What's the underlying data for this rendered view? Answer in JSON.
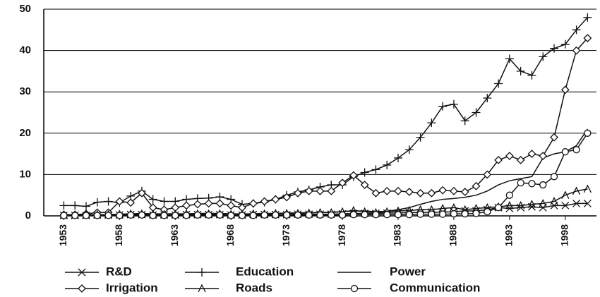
{
  "chart_data": {
    "type": "line",
    "x": [
      1953,
      1954,
      1955,
      1956,
      1957,
      1958,
      1959,
      1960,
      1961,
      1962,
      1963,
      1964,
      1965,
      1966,
      1967,
      1968,
      1969,
      1970,
      1971,
      1972,
      1973,
      1974,
      1975,
      1976,
      1977,
      1978,
      1979,
      1980,
      1981,
      1982,
      1983,
      1984,
      1985,
      1986,
      1987,
      1988,
      1989,
      1990,
      1991,
      1992,
      1993,
      1994,
      1995,
      1996,
      1997,
      1998,
      1999,
      2000
    ],
    "xlim": [
      1951.2,
      2000.8
    ],
    "xticks": [
      1953,
      1958,
      1963,
      1968,
      1973,
      1978,
      1983,
      1988,
      1993,
      1998
    ],
    "ylim": [
      0,
      50
    ],
    "yticks": [
      0,
      10,
      20,
      30,
      40,
      50
    ],
    "grid": true,
    "series": [
      {
        "name": "R&D",
        "color": "#111111",
        "marker": "x",
        "values": [
          0.1,
          0.1,
          0.1,
          0.2,
          0.2,
          0.2,
          0.3,
          0.3,
          0.2,
          0.2,
          0.2,
          0.3,
          0.3,
          0.3,
          0.3,
          0.2,
          0.2,
          0.3,
          0.3,
          0.3,
          0.3,
          0.4,
          0.4,
          0.4,
          0.4,
          0.5,
          0.6,
          0.6,
          0.6,
          0.7,
          0.7,
          0.8,
          0.8,
          0.9,
          0.9,
          1.0,
          1.2,
          1.2,
          1.5,
          2.0,
          1.8,
          2.0,
          2.2,
          2.0,
          2.5,
          2.5,
          3.0,
          3.0
        ]
      },
      {
        "name": "Education",
        "color": "#111111",
        "marker": "plus",
        "values": [
          2.5,
          2.5,
          2.3,
          3.3,
          3.5,
          3.2,
          4.8,
          6.0,
          4.0,
          3.5,
          3.5,
          4.0,
          4.2,
          4.3,
          4.6,
          4.0,
          2.8,
          3.0,
          3.3,
          4.0,
          5.0,
          5.8,
          6.3,
          7.0,
          7.5,
          7.5,
          9.5,
          10.5,
          11.2,
          12.3,
          14.0,
          16.0,
          19.0,
          22.5,
          26.5,
          27.0,
          23.0,
          25.0,
          28.5,
          32.0,
          38.0,
          35.0,
          34.0,
          38.5,
          40.5,
          41.5,
          45.0,
          48.0
        ]
      },
      {
        "name": "Power",
        "color": "#111111",
        "marker": "none",
        "values": [
          0.2,
          0.2,
          0.3,
          0.3,
          0.3,
          0.4,
          0.5,
          0.6,
          0.5,
          0.5,
          0.5,
          0.5,
          0.6,
          0.6,
          0.6,
          0.5,
          0.5,
          0.5,
          0.6,
          0.6,
          0.7,
          0.7,
          0.8,
          0.8,
          0.9,
          1.0,
          1.2,
          1.2,
          1.0,
          1.1,
          1.5,
          2.0,
          2.8,
          3.5,
          4.0,
          4.2,
          4.5,
          5.0,
          6.0,
          7.5,
          8.5,
          9.0,
          9.5,
          14.0,
          15.0,
          15.5,
          17.0,
          21.0
        ]
      },
      {
        "name": "Irrigation",
        "color": "#111111",
        "marker": "diamond",
        "values": [
          0.3,
          0.3,
          0.5,
          0.8,
          0.8,
          3.5,
          3.2,
          5.5,
          2.0,
          1.5,
          2.0,
          2.5,
          2.8,
          3.0,
          3.0,
          2.5,
          2.0,
          3.0,
          3.5,
          4.0,
          4.5,
          5.5,
          6.0,
          6.0,
          6.0,
          8.0,
          9.8,
          7.5,
          5.5,
          6.0,
          6.0,
          5.8,
          5.5,
          5.5,
          6.2,
          6.0,
          5.8,
          7.2,
          10.0,
          13.5,
          14.5,
          13.5,
          15.0,
          14.5,
          19.0,
          30.5,
          40.0,
          43.0
        ]
      },
      {
        "name": "Roads",
        "color": "#111111",
        "marker": "caret",
        "values": [
          0.2,
          0.2,
          0.2,
          0.3,
          0.3,
          0.4,
          0.5,
          0.5,
          0.4,
          0.4,
          0.4,
          0.5,
          0.5,
          0.5,
          0.5,
          0.4,
          0.4,
          0.5,
          0.5,
          0.6,
          0.6,
          0.6,
          0.7,
          0.8,
          0.8,
          1.0,
          1.3,
          1.0,
          0.8,
          1.0,
          1.2,
          1.3,
          1.5,
          1.5,
          1.8,
          2.0,
          1.5,
          1.8,
          2.0,
          2.2,
          2.5,
          2.5,
          2.8,
          3.0,
          3.5,
          5.0,
          6.0,
          6.5
        ]
      },
      {
        "name": "Communication",
        "color": "#111111",
        "marker": "circle",
        "values": [
          0.1,
          0.1,
          0.1,
          0.1,
          0.1,
          0.1,
          0.2,
          0.2,
          0.1,
          0.1,
          0.1,
          0.1,
          0.2,
          0.2,
          0.2,
          0.1,
          0.1,
          0.1,
          0.2,
          0.2,
          0.2,
          0.2,
          0.2,
          0.2,
          0.2,
          0.2,
          0.3,
          0.3,
          0.3,
          0.3,
          0.3,
          0.3,
          0.4,
          0.4,
          0.4,
          0.5,
          0.5,
          0.6,
          1.0,
          2.0,
          5.0,
          8.0,
          7.8,
          7.5,
          9.5,
          15.5,
          16.0,
          20.0
        ]
      }
    ]
  }
}
